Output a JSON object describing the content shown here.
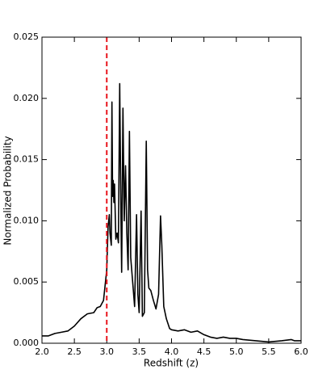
{
  "chart_data": {
    "type": "line",
    "x_label": "Redshift (z)",
    "y_label": "Normalized Probability",
    "x": [
      2.0,
      2.1,
      2.2,
      2.3,
      2.4,
      2.5,
      2.6,
      2.7,
      2.8,
      2.85,
      2.9,
      2.95,
      3.0,
      3.02,
      3.04,
      3.05,
      3.07,
      3.08,
      3.09,
      3.1,
      3.11,
      3.12,
      3.14,
      3.16,
      3.18,
      3.2,
      3.22,
      3.23,
      3.25,
      3.27,
      3.29,
      3.31,
      3.33,
      3.35,
      3.37,
      3.4,
      3.43,
      3.46,
      3.48,
      3.5,
      3.53,
      3.55,
      3.58,
      3.61,
      3.63,
      3.65,
      3.68,
      3.72,
      3.76,
      3.8,
      3.83,
      3.85,
      3.88,
      3.92,
      3.97,
      4.0,
      4.1,
      4.2,
      4.3,
      4.4,
      4.5,
      4.6,
      4.7,
      4.8,
      4.9,
      5.0,
      5.1,
      5.3,
      5.5,
      5.7,
      5.85,
      5.9,
      6.0
    ],
    "values": [
      0.0006,
      0.0006,
      0.0008,
      0.0009,
      0.001,
      0.0014,
      0.002,
      0.0024,
      0.0025,
      0.0029,
      0.003,
      0.0035,
      0.006,
      0.0095,
      0.0105,
      0.009,
      0.008,
      0.0197,
      0.012,
      0.0133,
      0.0115,
      0.013,
      0.0085,
      0.009,
      0.0082,
      0.0212,
      0.01,
      0.0058,
      0.0192,
      0.01,
      0.0145,
      0.009,
      0.006,
      0.0173,
      0.007,
      0.005,
      0.003,
      0.0105,
      0.004,
      0.0025,
      0.0108,
      0.0022,
      0.0025,
      0.0165,
      0.006,
      0.0045,
      0.0043,
      0.0035,
      0.0028,
      0.004,
      0.0104,
      0.008,
      0.003,
      0.002,
      0.0012,
      0.0011,
      0.001,
      0.0011,
      0.0009,
      0.001,
      0.0007,
      0.0005,
      0.0004,
      0.0005,
      0.0004,
      0.0004,
      0.0003,
      0.0002,
      0.0001,
      0.0002,
      0.0003,
      0.0002,
      0.0002
    ],
    "color": "#000000",
    "vline": {
      "x": 3.0,
      "color": "#e8141c"
    },
    "xlim": [
      2.0,
      6.0
    ],
    "xticks": [
      {
        "value": 2.0,
        "label": "2.0"
      },
      2.5,
      {
        "value": 3.0,
        "label": "3.0"
      },
      3.5,
      {
        "value": 4.0,
        "label": "4.0"
      },
      4.5,
      {
        "value": 5.0,
        "label": "5.0"
      },
      5.5,
      {
        "value": 6.0,
        "label": "6.0"
      }
    ],
    "ylim": [
      0,
      0.025
    ],
    "yticks": [
      {
        "value": 0,
        "label": "0.000"
      },
      0.005,
      {
        "value": 0.01,
        "label": "0.010"
      },
      0.015,
      {
        "value": 0.02,
        "label": "0.020"
      },
      0.025
    ],
    "grid": false
  }
}
